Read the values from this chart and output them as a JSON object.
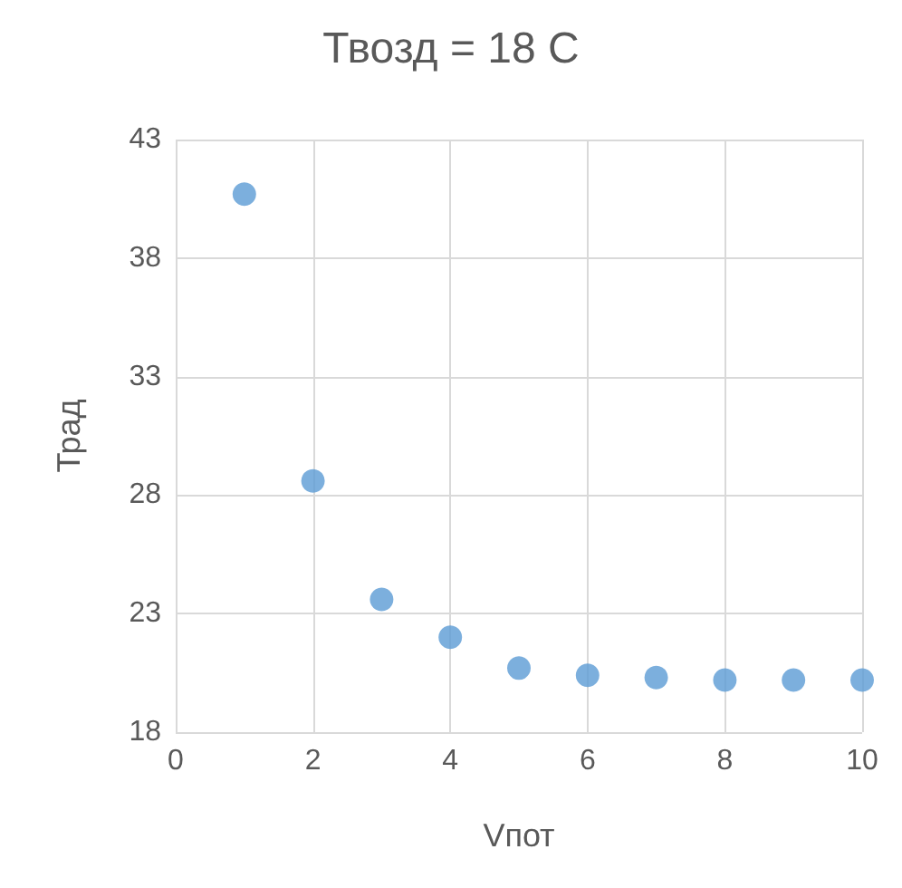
{
  "chart_data": {
    "type": "scatter",
    "title": "Твозд = 18 С",
    "xlabel": "Vпот",
    "ylabel": "Трад",
    "x": [
      1,
      2,
      3,
      4,
      5,
      6,
      7,
      8,
      9,
      10
    ],
    "series": [
      {
        "color": "#5b9bd5",
        "values": [
          40.7,
          28.6,
          23.6,
          22.0,
          20.7,
          20.4,
          20.3,
          20.2,
          20.2,
          20.2
        ]
      }
    ],
    "xlim": [
      0,
      10
    ],
    "xticks": [
      0,
      2,
      4,
      6,
      8,
      10
    ],
    "ylim": [
      18,
      43
    ],
    "yticks": [
      18,
      23,
      28,
      33,
      38,
      43
    ],
    "grid": true,
    "marker": "circle"
  }
}
